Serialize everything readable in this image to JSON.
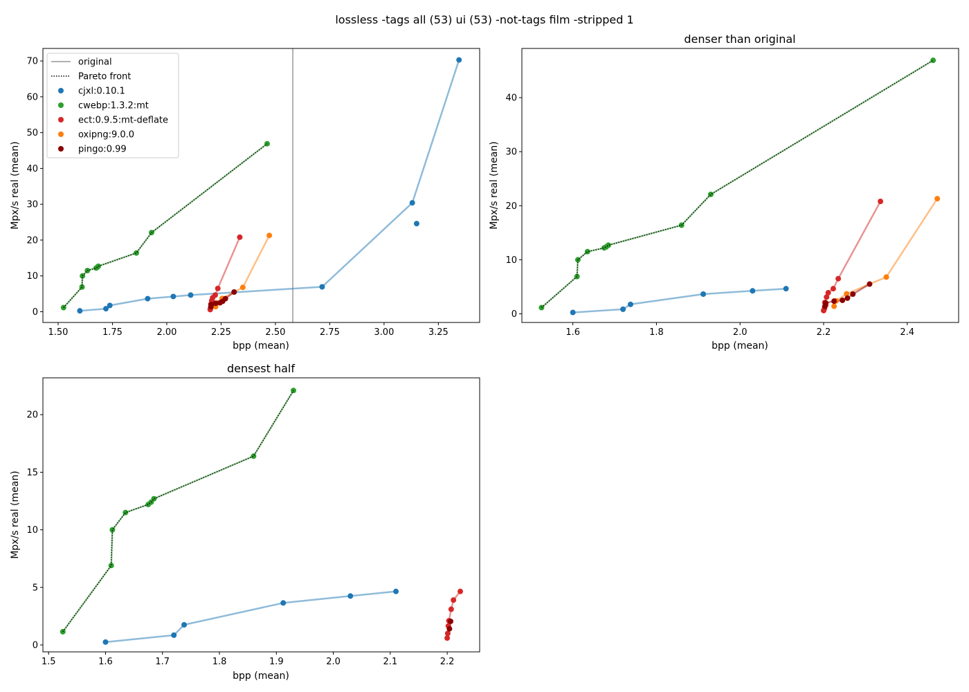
{
  "figure_title": "lossless -tags all (53) ui (53) -not-tags film -stripped 1",
  "colors": {
    "cjxl:0.10.1": "#1f77b4",
    "cwebp:1.3.2:mt": "#2ca02c",
    "ect:0.9.5:mt-deflate": "#d62728",
    "oxipng:9.0.0": "#ff7f0e",
    "pingo:0.99": "#8b0000",
    "original": "#808080",
    "pareto": "#000000"
  },
  "legend": {
    "placement": "upper-left",
    "entries": [
      {
        "label": "original",
        "kind": "line"
      },
      {
        "label": "Pareto front",
        "kind": "dotted"
      },
      {
        "label": "cjxl:0.10.1",
        "kind": "point"
      },
      {
        "label": "cwebp:1.3.2:mt",
        "kind": "point"
      },
      {
        "label": "ect:0.9.5:mt-deflate",
        "kind": "point"
      },
      {
        "label": "oxipng:9.0.0",
        "kind": "point"
      },
      {
        "label": "pingo:0.99",
        "kind": "point"
      }
    ]
  },
  "chart_data": [
    {
      "type": "scatter",
      "title": "",
      "xlabel": "bpp (mean)",
      "ylabel": "Mpx/s real (mean)",
      "xlim": [
        1.43,
        3.44
      ],
      "ylim": [
        -3.0,
        73.5
      ],
      "xticks": [
        "1.50",
        "1.75",
        "2.00",
        "2.25",
        "2.50",
        "2.75",
        "3.00",
        "3.25"
      ],
      "xtick_values": [
        1.5,
        1.75,
        2.0,
        2.25,
        2.5,
        2.75,
        3.0,
        3.25
      ],
      "yticks": [
        "0",
        "10",
        "20",
        "30",
        "40",
        "50",
        "60",
        "70"
      ],
      "ytick_values": [
        0,
        10,
        20,
        30,
        40,
        50,
        60,
        70
      ],
      "grid": false,
      "original_bpp": 2.58,
      "series": [
        {
          "name": "cjxl:0.10.1",
          "line": true,
          "points": [
            [
              1.6,
              0.25
            ],
            [
              1.72,
              0.85
            ],
            [
              1.738,
              1.75
            ],
            [
              1.912,
              3.65
            ],
            [
              2.03,
              4.25
            ],
            [
              2.11,
              4.65
            ],
            [
              2.715,
              6.95
            ],
            [
              3.13,
              30.4
            ],
            [
              3.345,
              70.3
            ]
          ]
        },
        {
          "name": "cjxl:0.10.1",
          "line": false,
          "points": [
            [
              3.15,
              24.6
            ]
          ]
        },
        {
          "name": "cwebp:1.3.2:mt",
          "line": true,
          "points": [
            [
              1.525,
              1.15
            ],
            [
              1.61,
              6.9
            ],
            [
              1.612,
              10.0
            ],
            [
              1.635,
              11.5
            ],
            [
              1.675,
              12.2
            ],
            [
              1.68,
              12.4
            ],
            [
              1.685,
              12.7
            ],
            [
              1.86,
              16.4
            ],
            [
              1.93,
              22.1
            ],
            [
              2.462,
              46.9
            ]
          ]
        },
        {
          "name": "ect:0.9.5:mt-deflate",
          "line": true,
          "points": [
            [
              2.2,
              0.6
            ],
            [
              2.202,
              1.0
            ],
            [
              2.205,
              1.6
            ],
            [
              2.203,
              2.1
            ],
            [
              2.207,
              3.1
            ],
            [
              2.211,
              3.9
            ],
            [
              2.223,
              4.65
            ],
            [
              2.235,
              6.5
            ],
            [
              2.336,
              20.8
            ]
          ]
        },
        {
          "name": "oxipng:9.0.0",
          "line": true,
          "points": [
            [
              2.225,
              1.4
            ],
            [
              2.23,
              2.4
            ],
            [
              2.255,
              3.7
            ],
            [
              2.35,
              6.8
            ],
            [
              2.472,
              21.3
            ]
          ]
        },
        {
          "name": "pingo:0.99",
          "line": true,
          "points": [
            [
              2.203,
              1.4
            ],
            [
              2.205,
              2.0
            ],
            [
              2.225,
              2.35
            ],
            [
              2.245,
              2.5
            ],
            [
              2.257,
              2.9
            ],
            [
              2.27,
              3.65
            ],
            [
              2.31,
              5.5
            ]
          ]
        }
      ],
      "pareto_front": [
        [
          1.525,
          1.15
        ],
        [
          1.61,
          6.9
        ],
        [
          1.612,
          10.0
        ],
        [
          1.635,
          11.5
        ],
        [
          1.675,
          12.2
        ],
        [
          1.68,
          12.4
        ],
        [
          1.685,
          12.7
        ],
        [
          1.86,
          16.4
        ],
        [
          1.93,
          22.1
        ],
        [
          2.462,
          46.9
        ]
      ]
    },
    {
      "type": "scatter",
      "title": "denser than original",
      "xlabel": "bpp (mean)",
      "ylabel": "Mpx/s real (mean)",
      "xlim": [
        1.478,
        2.523
      ],
      "ylim": [
        -1.6,
        49.1
      ],
      "xticks": [
        "1.6",
        "1.8",
        "2.0",
        "2.2",
        "2.4"
      ],
      "xtick_values": [
        1.6,
        1.8,
        2.0,
        2.2,
        2.4
      ],
      "yticks": [
        "0",
        "10",
        "20",
        "30",
        "40"
      ],
      "ytick_values": [
        0,
        10,
        20,
        30,
        40
      ],
      "grid": false,
      "series": [
        {
          "name": "cjxl:0.10.1",
          "line": true,
          "points": [
            [
              1.6,
              0.25
            ],
            [
              1.72,
              0.85
            ],
            [
              1.738,
              1.75
            ],
            [
              1.912,
              3.65
            ],
            [
              2.03,
              4.25
            ],
            [
              2.11,
              4.65
            ]
          ]
        },
        {
          "name": "cwebp:1.3.2:mt",
          "line": true,
          "points": [
            [
              1.525,
              1.15
            ],
            [
              1.61,
              6.9
            ],
            [
              1.612,
              10.0
            ],
            [
              1.635,
              11.5
            ],
            [
              1.675,
              12.2
            ],
            [
              1.68,
              12.4
            ],
            [
              1.685,
              12.7
            ],
            [
              1.86,
              16.4
            ],
            [
              1.93,
              22.1
            ],
            [
              2.462,
              46.9
            ]
          ]
        },
        {
          "name": "ect:0.9.5:mt-deflate",
          "line": true,
          "points": [
            [
              2.2,
              0.6
            ],
            [
              2.202,
              1.0
            ],
            [
              2.205,
              1.6
            ],
            [
              2.203,
              2.1
            ],
            [
              2.207,
              3.1
            ],
            [
              2.211,
              3.9
            ],
            [
              2.223,
              4.65
            ],
            [
              2.235,
              6.5
            ],
            [
              2.336,
              20.8
            ]
          ]
        },
        {
          "name": "oxipng:9.0.0",
          "line": true,
          "points": [
            [
              2.225,
              1.4
            ],
            [
              2.23,
              2.4
            ],
            [
              2.255,
              3.7
            ],
            [
              2.35,
              6.8
            ],
            [
              2.472,
              21.3
            ]
          ]
        },
        {
          "name": "pingo:0.99",
          "line": true,
          "points": [
            [
              2.203,
              1.4
            ],
            [
              2.205,
              2.0
            ],
            [
              2.225,
              2.35
            ],
            [
              2.245,
              2.5
            ],
            [
              2.257,
              2.9
            ],
            [
              2.27,
              3.65
            ],
            [
              2.31,
              5.5
            ]
          ]
        }
      ],
      "pareto_front": [
        [
          1.525,
          1.15
        ],
        [
          1.61,
          6.9
        ],
        [
          1.612,
          10.0
        ],
        [
          1.635,
          11.5
        ],
        [
          1.675,
          12.2
        ],
        [
          1.68,
          12.4
        ],
        [
          1.685,
          12.7
        ],
        [
          1.86,
          16.4
        ],
        [
          1.93,
          22.1
        ],
        [
          2.462,
          46.9
        ]
      ]
    },
    {
      "type": "scatter",
      "title": "densest half",
      "xlabel": "bpp (mean)",
      "ylabel": "Mpx/s real (mean)",
      "xlim": [
        1.49,
        2.257
      ],
      "ylim": [
        -0.6,
        23.2
      ],
      "xticks": [
        "1.5",
        "1.6",
        "1.7",
        "1.8",
        "1.9",
        "2.0",
        "2.1",
        "2.2"
      ],
      "xtick_values": [
        1.5,
        1.6,
        1.7,
        1.8,
        1.9,
        2.0,
        2.1,
        2.2
      ],
      "yticks": [
        "0",
        "5",
        "10",
        "15",
        "20"
      ],
      "ytick_values": [
        0,
        5,
        10,
        15,
        20
      ],
      "grid": false,
      "series": [
        {
          "name": "cjxl:0.10.1",
          "line": true,
          "points": [
            [
              1.6,
              0.25
            ],
            [
              1.72,
              0.85
            ],
            [
              1.738,
              1.75
            ],
            [
              1.912,
              3.65
            ],
            [
              2.03,
              4.25
            ],
            [
              2.11,
              4.65
            ]
          ]
        },
        {
          "name": "cwebp:1.3.2:mt",
          "line": true,
          "points": [
            [
              1.525,
              1.15
            ],
            [
              1.61,
              6.9
            ],
            [
              1.612,
              10.0
            ],
            [
              1.635,
              11.5
            ],
            [
              1.675,
              12.2
            ],
            [
              1.68,
              12.4
            ],
            [
              1.685,
              12.7
            ],
            [
              1.86,
              16.4
            ],
            [
              1.93,
              22.1
            ]
          ]
        },
        {
          "name": "ect:0.9.5:mt-deflate",
          "line": true,
          "points": [
            [
              2.2,
              0.6
            ],
            [
              2.201,
              1.0
            ],
            [
              2.202,
              1.65
            ],
            [
              2.203,
              2.1
            ],
            [
              2.207,
              3.1
            ],
            [
              2.211,
              3.9
            ],
            [
              2.223,
              4.65
            ]
          ]
        },
        {
          "name": "pingo:0.99",
          "line": true,
          "points": [
            [
              2.204,
              1.4
            ],
            [
              2.206,
              2.05
            ]
          ]
        }
      ],
      "pareto_front": [
        [
          1.525,
          1.15
        ],
        [
          1.61,
          6.9
        ],
        [
          1.612,
          10.0
        ],
        [
          1.635,
          11.5
        ],
        [
          1.675,
          12.2
        ],
        [
          1.68,
          12.4
        ],
        [
          1.685,
          12.7
        ],
        [
          1.86,
          16.4
        ],
        [
          1.93,
          22.1
        ]
      ]
    }
  ]
}
